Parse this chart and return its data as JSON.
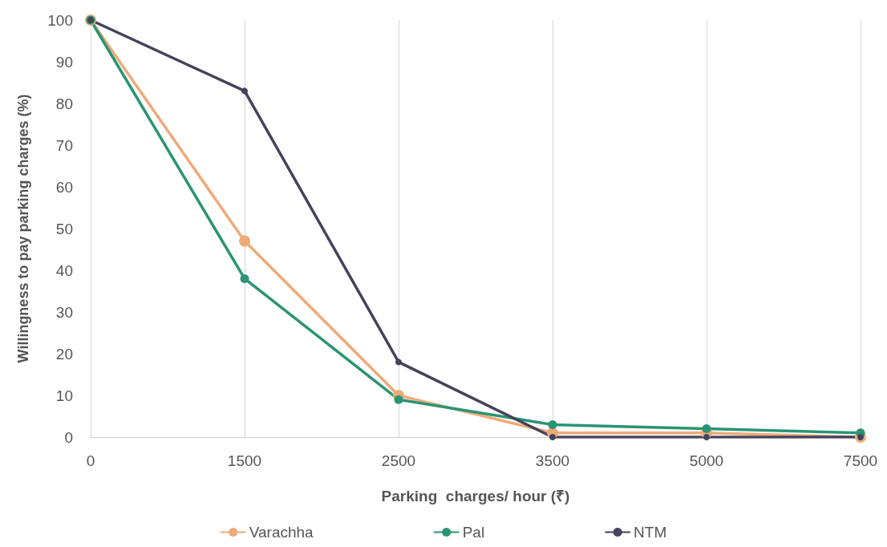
{
  "chart_data": {
    "type": "line",
    "xlabel": "Parking  charges/ hour (₹)",
    "ylabel": "Willingness to pay parking charges (%)",
    "categories": [
      "0",
      "1500",
      "2500",
      "3500",
      "5000",
      "7500"
    ],
    "series": [
      {
        "name": "Varachha",
        "color": "#efaa78",
        "values": [
          100,
          47,
          10,
          1,
          1,
          0
        ]
      },
      {
        "name": "Pal",
        "color": "#2a9474",
        "values": [
          100,
          38,
          9,
          3,
          2,
          1
        ]
      },
      {
        "name": "NTM",
        "color": "#43435c",
        "values": [
          100,
          83,
          18,
          0,
          0,
          0
        ]
      }
    ],
    "ylim": [
      0,
      100
    ],
    "yticks": [
      0,
      10,
      20,
      30,
      40,
      50,
      60,
      70,
      80,
      90,
      100
    ],
    "grid": "x",
    "legend": "bottom",
    "marker": "circle",
    "line_style": "solid"
  }
}
